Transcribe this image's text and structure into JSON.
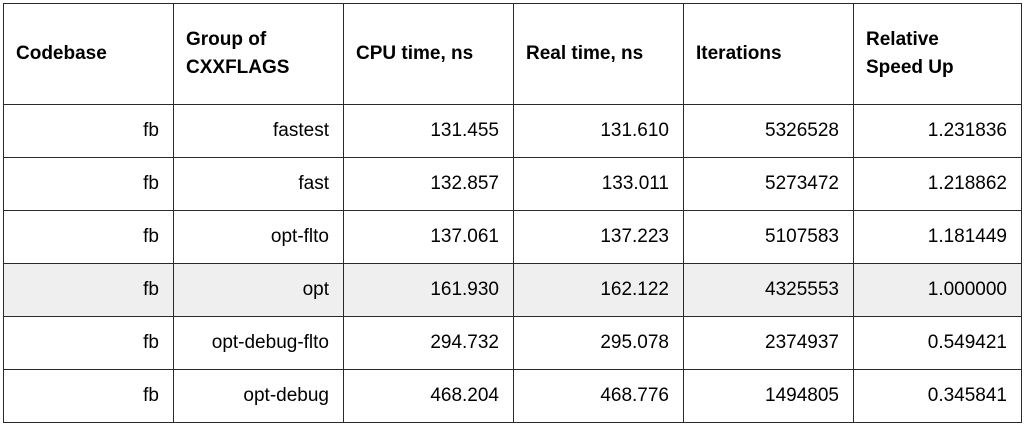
{
  "table": {
    "headers": [
      [
        "Codebase"
      ],
      [
        "Group of",
        "CXXFLAGS"
      ],
      [
        "CPU time, ns"
      ],
      [
        "Real time, ns"
      ],
      [
        "Iterations"
      ],
      [
        "Relative",
        "Speed Up"
      ]
    ],
    "rows": [
      [
        "fb",
        "fastest",
        "131.455",
        "131.610",
        "5326528",
        "1.231836"
      ],
      [
        "fb",
        "fast",
        "132.857",
        "133.011",
        "5273472",
        "1.218862"
      ],
      [
        "fb",
        "opt-flto",
        "137.061",
        "137.223",
        "5107583",
        "1.181449"
      ],
      [
        "fb",
        "opt",
        "161.930",
        "162.122",
        "4325553",
        "1.000000"
      ],
      [
        "fb",
        "opt-debug-flto",
        "294.732",
        "295.078",
        "2374937",
        "0.549421"
      ],
      [
        "fb",
        "opt-debug",
        "468.204",
        "468.776",
        "1494805",
        "0.345841"
      ]
    ],
    "highlight_row": 3,
    "highlight_color": "#efefef",
    "border_color": "#2a2a2a"
  }
}
